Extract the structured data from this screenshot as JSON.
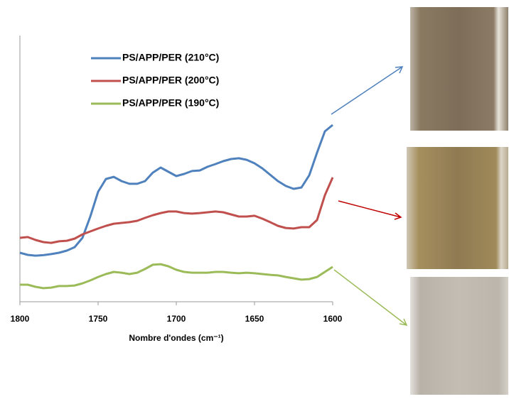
{
  "chart_data": {
    "type": "line",
    "x_label": "Nombre d'ondes (cm⁻¹)",
    "x": [
      1800,
      1795,
      1790,
      1785,
      1780,
      1775,
      1770,
      1765,
      1760,
      1755,
      1750,
      1745,
      1740,
      1735,
      1730,
      1725,
      1720,
      1715,
      1710,
      1705,
      1700,
      1695,
      1690,
      1685,
      1680,
      1675,
      1670,
      1665,
      1660,
      1655,
      1650,
      1645,
      1640,
      1635,
      1630,
      1625,
      1620,
      1615,
      1610,
      1605,
      1600
    ],
    "series": [
      {
        "name": "PS/APP/PER (210°C)",
        "color": "#4f81bd",
        "values": [
          18.4,
          17.6,
          17.3,
          17.5,
          17.9,
          18.4,
          19.2,
          20.5,
          24,
          32,
          41.3,
          46.1,
          46.9,
          45.3,
          44.3,
          44.3,
          45.3,
          48.5,
          50.4,
          48.8,
          47.2,
          48,
          49.1,
          49.3,
          50.7,
          51.7,
          52.8,
          53.6,
          53.9,
          53.3,
          52,
          50.1,
          47.7,
          45.3,
          43.5,
          42.4,
          42.9,
          47.5,
          56,
          64,
          66.4
        ]
      },
      {
        "name": "PS/APP/PER (200°C)",
        "color": "#c0504d",
        "values": [
          24,
          24.3,
          23.2,
          22.4,
          22.1,
          22.7,
          22.9,
          23.7,
          25.3,
          26.4,
          27.5,
          28.5,
          29.3,
          29.6,
          29.9,
          30.4,
          31.5,
          32.5,
          33.3,
          33.9,
          33.9,
          33.3,
          33.1,
          33.3,
          33.6,
          33.9,
          33.6,
          32.8,
          32,
          32,
          32.3,
          31.2,
          29.9,
          28.5,
          27.7,
          27.5,
          28,
          28,
          30.7,
          40,
          46.7
        ]
      },
      {
        "name": "PS/APP/PER (190°C)",
        "color": "#9bbb59",
        "values": [
          6.4,
          6.4,
          5.6,
          5.1,
          5.3,
          5.9,
          5.9,
          6.1,
          6.9,
          8,
          9.3,
          10.4,
          11.2,
          10.9,
          10.4,
          10.9,
          12.3,
          13.9,
          14.1,
          13.3,
          12,
          11.2,
          10.9,
          10.9,
          10.9,
          11.2,
          11.2,
          10.9,
          10.7,
          10.9,
          10.7,
          10.4,
          10.1,
          9.9,
          9.3,
          8.8,
          8.3,
          8.5,
          9.3,
          11.2,
          13.1
        ]
      }
    ],
    "xlim": [
      1800,
      1600
    ],
    "xticks": [
      1800,
      1750,
      1700,
      1650,
      1600
    ],
    "ylim": [
      0,
      100
    ]
  }
}
